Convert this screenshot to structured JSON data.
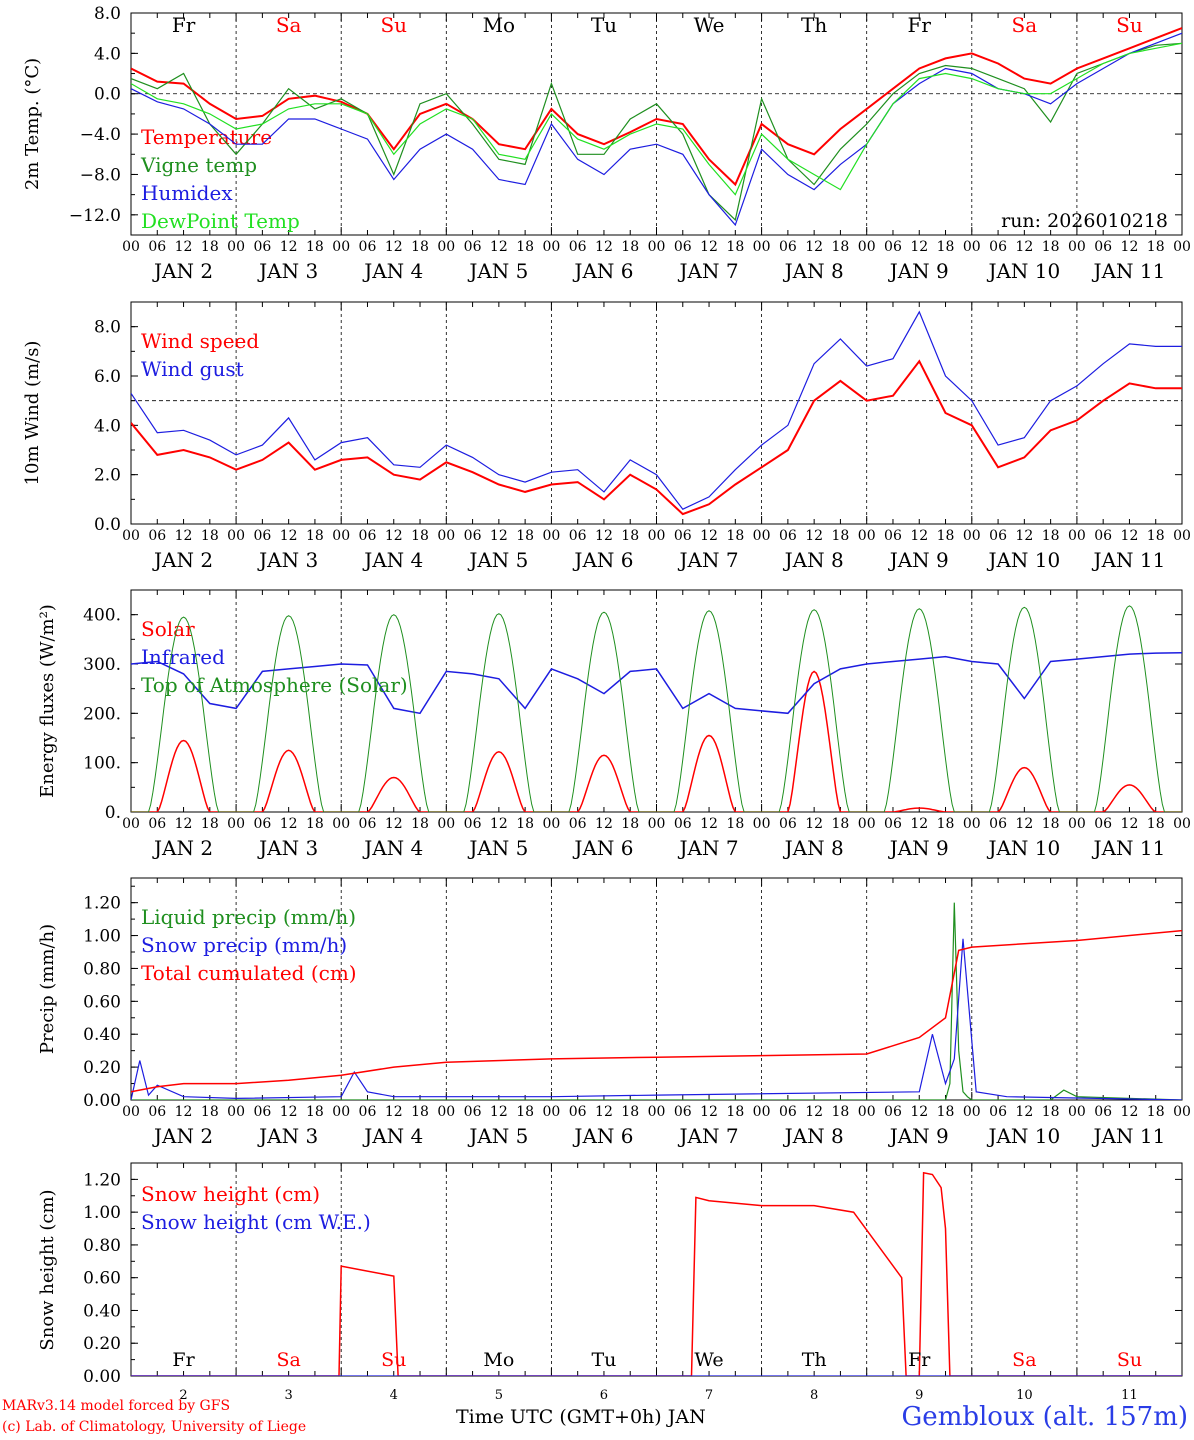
{
  "run_label": "run: 2026010218",
  "colors": {
    "red": "#ff0000",
    "green": "#1f8f1f",
    "blue": "#1d1de0",
    "lightgreen": "#22e022",
    "black": "#000000"
  },
  "x_axis": {
    "hour_ticks": [
      "00",
      "06",
      "12",
      "18"
    ],
    "final_tick": "00",
    "date_labels": [
      "JAN  2",
      "JAN  3",
      "JAN  4",
      "JAN  5",
      "JAN  6",
      "JAN  7",
      "JAN  8",
      "JAN  9",
      "JAN 10",
      "JAN 11"
    ],
    "weekday_labels": [
      "Fr",
      "Sa",
      "Su",
      "Mo",
      "Tu",
      "We",
      "Th",
      "Fr",
      "Sa",
      "Su"
    ],
    "weekday_colors": [
      "black",
      "red",
      "red",
      "black",
      "black",
      "black",
      "black",
      "black",
      "red",
      "red"
    ],
    "day_numbers": [
      "2",
      "3",
      "4",
      "5",
      "6",
      "7",
      "8",
      "9",
      "10",
      "11"
    ],
    "title": "Time UTC (GMT+0h) JAN"
  },
  "footer": {
    "model": "MARv3.14 model forced by GFS",
    "credit": "(c) Lab. of Climatology, University of Liege",
    "station": "Gembloux (alt. 157m)"
  },
  "chart_data": [
    {
      "type": "line",
      "ylabel": "2m Temp. (°C)",
      "ylim": [
        -14,
        8
      ],
      "yticks": [
        8,
        4,
        0,
        -4,
        -8,
        -12
      ],
      "ytick_labels": [
        "8.0",
        "4.0",
        "0.0",
        "−4.0",
        "−8.0",
        "−12.0"
      ],
      "ref_line": 0,
      "x_hours": [
        0,
        6,
        12,
        18,
        24,
        30,
        36,
        42,
        48,
        54,
        60,
        66,
        72,
        78,
        84,
        90,
        96,
        102,
        108,
        114,
        120,
        126,
        132,
        138,
        144,
        150,
        156,
        162,
        168,
        174,
        180,
        186,
        192,
        198,
        204,
        210,
        216,
        222,
        228,
        234,
        240
      ],
      "series": [
        {
          "name": "Temperature",
          "color": "red",
          "width": 2,
          "values": [
            2.5,
            1.2,
            1.0,
            -1.0,
            -2.5,
            -2.2,
            -0.5,
            -0.2,
            -0.8,
            -2.0,
            -5.5,
            -2.0,
            -1.0,
            -2.5,
            -5.0,
            -5.5,
            -1.5,
            -4.0,
            -5.0,
            -3.8,
            -2.5,
            -3.0,
            -6.5,
            -9.0,
            -3.0,
            -5.0,
            -6.0,
            -3.5,
            -1.5,
            0.5,
            2.5,
            3.5,
            4.0,
            3.0,
            1.5,
            1.0,
            2.5,
            3.5,
            4.5,
            5.5,
            6.5
          ]
        },
        {
          "name": "Vigne temp",
          "color": "green",
          "width": 1.2,
          "values": [
            1.5,
            0.5,
            2.0,
            -3.0,
            -6.0,
            -3.0,
            0.5,
            -1.5,
            -0.5,
            -2.0,
            -8.0,
            -1.0,
            0.0,
            -3.0,
            -6.5,
            -7.0,
            1.0,
            -6.0,
            -6.0,
            -2.5,
            -1.0,
            -4.0,
            -10.0,
            -12.5,
            -0.5,
            -6.5,
            -9.0,
            -5.5,
            -3.0,
            0.0,
            2.0,
            2.8,
            2.5,
            1.5,
            0.5,
            -2.8,
            2.0,
            3.0,
            4.0,
            4.8,
            5.0
          ]
        },
        {
          "name": "Humidex",
          "color": "blue",
          "width": 1.2,
          "values": [
            0.5,
            -0.8,
            -1.5,
            -3.0,
            -5.0,
            -5.0,
            -2.5,
            -2.5,
            -3.5,
            -4.5,
            -8.5,
            -5.5,
            -4.0,
            -5.5,
            -8.5,
            -9.0,
            -3.0,
            -6.5,
            -8.0,
            -5.5,
            -5.0,
            -6.0,
            -10.0,
            -13.0,
            -5.5,
            -8.0,
            -9.5,
            -7.0,
            -5.0,
            -1.0,
            1.0,
            2.5,
            2.0,
            0.5,
            0.0,
            -1.0,
            1.0,
            2.5,
            4.0,
            5.0,
            6.0
          ]
        },
        {
          "name": "DewPoint Temp",
          "color": "lightgreen",
          "width": 1.2,
          "values": [
            1.0,
            -0.5,
            -1.0,
            -2.0,
            -3.5,
            -3.0,
            -1.5,
            -1.0,
            -1.0,
            -2.0,
            -6.0,
            -3.0,
            -1.5,
            -2.5,
            -6.0,
            -6.5,
            -2.0,
            -4.5,
            -5.5,
            -4.0,
            -3.0,
            -3.5,
            -7.0,
            -10.0,
            -4.0,
            -6.5,
            -8.0,
            -9.5,
            -5.0,
            -1.0,
            1.5,
            2.0,
            1.5,
            0.5,
            0.0,
            0.0,
            1.5,
            3.0,
            4.0,
            4.5,
            5.0
          ]
        }
      ]
    },
    {
      "type": "line",
      "ylabel": "10m Wind (m/s)",
      "ylim": [
        0,
        9
      ],
      "yticks": [
        0,
        2,
        4,
        6,
        8
      ],
      "ytick_labels": [
        "0.0",
        "2.0",
        "4.0",
        "6.0",
        "8.0"
      ],
      "ref_line": 5,
      "x_hours": [
        0,
        6,
        12,
        18,
        24,
        30,
        36,
        42,
        48,
        54,
        60,
        66,
        72,
        78,
        84,
        90,
        96,
        102,
        108,
        114,
        120,
        126,
        132,
        138,
        144,
        150,
        156,
        162,
        168,
        174,
        180,
        186,
        192,
        198,
        204,
        210,
        216,
        222,
        228,
        234,
        240
      ],
      "series": [
        {
          "name": "Wind speed",
          "color": "red",
          "width": 2,
          "values": [
            4.1,
            2.8,
            3.0,
            2.7,
            2.2,
            2.6,
            3.3,
            2.2,
            2.6,
            2.7,
            2.0,
            1.8,
            2.5,
            2.1,
            1.6,
            1.3,
            1.6,
            1.7,
            1.0,
            2.0,
            1.4,
            0.4,
            0.8,
            1.6,
            2.3,
            3.0,
            5.0,
            5.8,
            5.0,
            5.2,
            6.6,
            4.5,
            4.0,
            2.3,
            2.7,
            3.8,
            4.2,
            5.0,
            5.7,
            5.5,
            5.5
          ]
        },
        {
          "name": "Wind gust",
          "color": "blue",
          "width": 1.2,
          "values": [
            5.3,
            3.7,
            3.8,
            3.4,
            2.8,
            3.2,
            4.3,
            2.6,
            3.3,
            3.5,
            2.4,
            2.3,
            3.2,
            2.7,
            2.0,
            1.7,
            2.1,
            2.2,
            1.3,
            2.6,
            2.0,
            0.6,
            1.1,
            2.2,
            3.2,
            4.0,
            6.5,
            7.5,
            6.4,
            6.7,
            8.6,
            6.0,
            5.0,
            3.2,
            3.5,
            5.0,
            5.6,
            6.5,
            7.3,
            7.2,
            7.2
          ]
        }
      ]
    },
    {
      "type": "line",
      "ylabel": "Energy fluxes (W/m²)",
      "ylim": [
        0,
        450
      ],
      "yticks": [
        0,
        100,
        200,
        300,
        400
      ],
      "ytick_labels": [
        "0.",
        "100.",
        "200.",
        "300.",
        "400."
      ],
      "series": [
        {
          "name": "Solar",
          "color": "red",
          "width": 1.5,
          "peak_hour": 12,
          "day_peaks": [
            145,
            125,
            70,
            122,
            115,
            155,
            285,
            8,
            90,
            55
          ]
        },
        {
          "name": "Infrared",
          "color": "blue",
          "width": 1.5,
          "x_hours": [
            0,
            6,
            12,
            18,
            24,
            30,
            36,
            42,
            48,
            54,
            60,
            66,
            72,
            78,
            84,
            90,
            96,
            102,
            108,
            114,
            120,
            126,
            132,
            138,
            144,
            150,
            156,
            162,
            168,
            174,
            180,
            186,
            192,
            198,
            204,
            210,
            216,
            222,
            228,
            234,
            240
          ],
          "values": [
            300,
            305,
            280,
            220,
            210,
            285,
            290,
            295,
            300,
            298,
            210,
            200,
            285,
            280,
            270,
            210,
            290,
            270,
            240,
            285,
            290,
            210,
            240,
            210,
            205,
            200,
            260,
            290,
            300,
            305,
            310,
            315,
            305,
            300,
            230,
            305,
            310,
            315,
            320,
            322,
            323
          ]
        },
        {
          "name": "Top of Atmosphere (Solar)",
          "color": "green",
          "width": 1,
          "peak_hour": 12,
          "day_peaks": [
            395,
            398,
            400,
            402,
            405,
            408,
            410,
            412,
            415,
            418
          ]
        }
      ]
    },
    {
      "type": "line",
      "ylabel": "Precip (mm/h)",
      "ylim": [
        0,
        1.35
      ],
      "yticks": [
        0,
        0.2,
        0.4,
        0.6,
        0.8,
        1.0,
        1.2
      ],
      "ytick_labels": [
        "0.00",
        "0.20",
        "0.40",
        "0.60",
        "0.80",
        "1.00",
        "1.20"
      ],
      "series": [
        {
          "name": "Liquid precip (mm/h)",
          "color": "green",
          "width": 1.2,
          "x_hours": [
            0,
            186,
            187,
            188,
            189,
            190,
            191,
            192,
            210,
            213,
            216,
            240
          ],
          "values": [
            0.0,
            0.0,
            0.1,
            1.2,
            0.3,
            0.05,
            0.02,
            0.0,
            0.0,
            0.06,
            0.02,
            0.0
          ]
        },
        {
          "name": "Snow precip (mm/h)",
          "color": "blue",
          "width": 1.2,
          "x_hours": [
            0,
            2,
            4,
            6,
            12,
            24,
            48,
            51,
            54,
            60,
            96,
            120,
            180,
            183,
            186,
            188,
            190,
            193,
            200,
            240
          ],
          "values": [
            0.0,
            0.24,
            0.03,
            0.09,
            0.02,
            0.01,
            0.02,
            0.17,
            0.05,
            0.02,
            0.02,
            0.03,
            0.05,
            0.4,
            0.1,
            0.25,
            0.98,
            0.05,
            0.02,
            0.0
          ]
        },
        {
          "name": "Total cumulated (cm)",
          "color": "red",
          "width": 1.5,
          "x_hours": [
            0,
            6,
            12,
            24,
            36,
            48,
            60,
            72,
            96,
            120,
            144,
            168,
            180,
            186,
            189,
            192,
            210,
            216,
            240
          ],
          "values": [
            0.05,
            0.08,
            0.1,
            0.1,
            0.12,
            0.15,
            0.2,
            0.23,
            0.25,
            0.26,
            0.27,
            0.28,
            0.38,
            0.5,
            0.91,
            0.93,
            0.96,
            0.97,
            1.03
          ]
        }
      ]
    },
    {
      "type": "line",
      "ylabel": "Snow height (cm)",
      "ylim": [
        0,
        1.3
      ],
      "yticks": [
        0,
        0.2,
        0.4,
        0.6,
        0.8,
        1.0,
        1.2
      ],
      "ytick_labels": [
        "0.00",
        "0.20",
        "0.40",
        "0.60",
        "0.80",
        "1.00",
        "1.20"
      ],
      "series": [
        {
          "name": "Snow height (cm)",
          "color": "red",
          "width": 1.5,
          "x_hours": [
            0,
            47.5,
            48,
            60,
            61,
            128,
            129,
            132,
            144,
            156,
            165,
            176,
            177,
            180,
            181,
            183,
            185,
            186,
            187,
            196,
            240
          ],
          "values": [
            0,
            0,
            0.67,
            0.61,
            0,
            0,
            1.09,
            1.07,
            1.04,
            1.04,
            1.0,
            0.6,
            0,
            0,
            1.24,
            1.23,
            1.15,
            0.9,
            0,
            0,
            0
          ]
        },
        {
          "name": "Snow height (cm W.E.)",
          "color": "blue",
          "width": 1.2,
          "x_hours": [
            0,
            240
          ],
          "values": [
            0,
            0
          ]
        }
      ]
    }
  ]
}
